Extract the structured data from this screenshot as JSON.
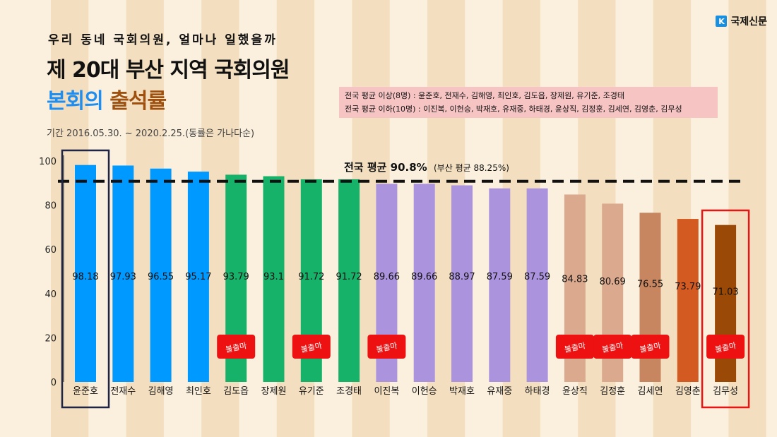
{
  "brand": {
    "logo": "K",
    "name": "국제신문"
  },
  "header": {
    "subtitle": "우리 동네 국회의원, 얼마나 일했을까",
    "title": "제 20대 부산 지역 국회의원",
    "title2_part1": "본회의",
    "title2_part2": "출석률",
    "period": "기간 2016.05.30. ~  2020.2.25.(동률은 가나다순)"
  },
  "notes": {
    "above": "전국 평균 이상(8명) : 윤준호, 전재수, 김해영, 최인호, 김도읍, 장제원, 유기준, 조경태",
    "below": "전국 평균 이하(10명) : 이진복, 이헌승, 박재호, 유재중, 하태경, 윤상직, 김정훈, 김세연, 김영춘, 김무성"
  },
  "colors": {
    "stripe_light": "#fbf0dd",
    "stripe_dark": "#f3dfbf",
    "blue": "#0099ff",
    "green": "#17b26a",
    "purple": "#ab93de",
    "tan": "#dba98e",
    "brownMid": "#c78560",
    "orange": "#d35b22",
    "darkBrown": "#9a4a06",
    "badge": "#ee1111",
    "highlight_navy": "#1f2547",
    "highlight_red": "#e81515"
  },
  "chart_data": {
    "type": "bar",
    "categories": [
      "윤준호",
      "전재수",
      "김해영",
      "최인호",
      "김도읍",
      "장제원",
      "유기준",
      "조경태",
      "이진복",
      "이헌승",
      "박재호",
      "유재중",
      "하태경",
      "윤상직",
      "김정훈",
      "김세연",
      "김영춘",
      "김무성"
    ],
    "values": [
      98.18,
      97.93,
      96.55,
      95.17,
      93.79,
      93.1,
      91.72,
      91.72,
      89.66,
      89.66,
      88.97,
      87.59,
      87.59,
      84.83,
      80.69,
      76.55,
      73.79,
      71.03
    ],
    "value_labels": [
      "98.18",
      "97.93",
      "96.55",
      "95.17",
      "93.79",
      "93.1",
      "91.72",
      "91.72",
      "89.66",
      "89.66",
      "88.97",
      "87.59",
      "87.59",
      "84.83",
      "80.69",
      "76.55",
      "73.79",
      "71.03"
    ],
    "bar_colors": [
      "blue",
      "blue",
      "blue",
      "blue",
      "green",
      "green",
      "green",
      "green",
      "purple",
      "purple",
      "purple",
      "purple",
      "purple",
      "tan",
      "tan",
      "brownMid",
      "orange",
      "darkBrown"
    ],
    "ylim": [
      0,
      100
    ],
    "yticks": [
      0,
      20,
      40,
      60,
      80,
      100
    ],
    "reference_line": {
      "value": 90.8,
      "label": "전국 평균 90.8%",
      "sublabel": "(부산 평균 88.25%)"
    },
    "badges": [
      {
        "bar_index": 4,
        "text": "불출마"
      },
      {
        "bar_index": 6,
        "text": "불출마"
      },
      {
        "bar_index": 8,
        "text": "불출마"
      },
      {
        "bar_index": 13,
        "text": "불출마"
      },
      {
        "bar_index": 14,
        "text": "불출마"
      },
      {
        "bar_index": 15,
        "text": "불출마"
      },
      {
        "bar_index": 17,
        "text": "불출마"
      }
    ],
    "highlights": [
      {
        "bar_index": 0,
        "color": "highlight_navy"
      },
      {
        "bar_index": 17,
        "color": "highlight_red"
      }
    ]
  }
}
